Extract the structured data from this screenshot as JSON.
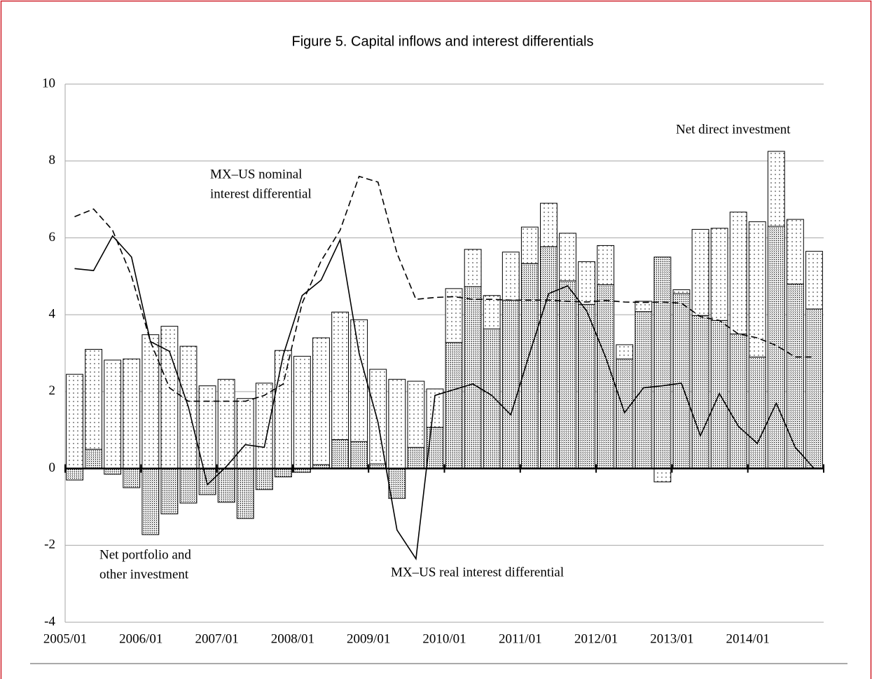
{
  "chart_data": {
    "type": "bar",
    "title": "Figure 5. Capital inflows and interest differentials",
    "categories": [
      "2005/01",
      null,
      null,
      null,
      "2006/01",
      null,
      null,
      null,
      "2007/01",
      null,
      null,
      null,
      "2008/01",
      null,
      null,
      null,
      "2009/01",
      null,
      null,
      null,
      "2010/01",
      null,
      null,
      null,
      "2011/01",
      null,
      null,
      null,
      "2012/01",
      null,
      null,
      null,
      "2013/01",
      null,
      null,
      null,
      "2014/01",
      null,
      null,
      null
    ],
    "ylim": [
      -4,
      10
    ],
    "yticks": [
      -4,
      -2,
      0,
      2,
      4,
      6,
      8,
      10
    ],
    "grid": true,
    "series": [
      {
        "type": "bar",
        "label": [
          "Net portfolio and",
          "other investment"
        ],
        "color": "#000000",
        "density": "dense",
        "values": [
          -0.3,
          0.5,
          -0.15,
          -0.5,
          -1.72,
          -1.18,
          -0.9,
          -0.68,
          -0.88,
          -1.3,
          -0.55,
          -0.22,
          -0.1,
          0.1,
          0.75,
          0.7,
          0.12,
          -0.78,
          0.55,
          1.07,
          3.28,
          4.73,
          3.63,
          4.38,
          5.33,
          5.77,
          4.88,
          4.27,
          4.78,
          2.85,
          4.08,
          5.5,
          4.55,
          3.98,
          3.85,
          3.5,
          2.9,
          6.3,
          4.8,
          4.15
        ]
      },
      {
        "type": "bar",
        "label": [
          "Net direct investment"
        ],
        "color": "#000000",
        "density": "sparse",
        "values": [
          2.45,
          2.6,
          2.82,
          2.85,
          3.48,
          3.7,
          3.18,
          2.15,
          2.32,
          1.82,
          2.22,
          3.07,
          2.92,
          3.3,
          3.32,
          3.17,
          2.46,
          2.32,
          1.72,
          1.0,
          1.4,
          0.97,
          0.87,
          1.25,
          0.95,
          1.13,
          1.24,
          1.11,
          1.02,
          0.37,
          0.27,
          -0.35,
          0.1,
          2.24,
          2.4,
          3.17,
          3.52,
          1.95,
          1.68,
          1.5
        ]
      },
      {
        "type": "line",
        "label": [
          "MX–US nominal",
          "interest differential"
        ],
        "color": "#000000",
        "style": "dashed",
        "values": [
          6.55,
          6.75,
          6.2,
          5.0,
          3.3,
          2.1,
          1.75,
          1.75,
          1.75,
          1.75,
          1.9,
          2.2,
          4.3,
          5.4,
          6.2,
          7.6,
          7.45,
          5.6,
          4.4,
          4.45,
          4.47,
          4.4,
          4.4,
          4.38,
          4.38,
          4.38,
          4.35,
          4.33,
          4.37,
          4.33,
          4.32,
          4.33,
          4.3,
          3.95,
          3.85,
          3.5,
          3.4,
          3.2,
          2.9,
          2.9
        ]
      },
      {
        "type": "line",
        "label": [
          "MX–US real interest differential"
        ],
        "color": "#000000",
        "style": "solid",
        "values": [
          5.2,
          5.15,
          6.05,
          5.5,
          3.3,
          3.05,
          1.6,
          -0.42,
          0.05,
          0.62,
          0.55,
          2.95,
          4.5,
          4.9,
          5.95,
          3.0,
          1.2,
          -1.6,
          -2.35,
          1.9,
          2.05,
          2.2,
          1.9,
          1.4,
          3.0,
          4.55,
          4.75,
          4.1,
          2.9,
          1.45,
          2.1,
          2.15,
          2.22,
          0.85,
          1.95,
          1.1,
          0.65,
          1.7,
          0.55,
          0.0
        ]
      }
    ]
  }
}
